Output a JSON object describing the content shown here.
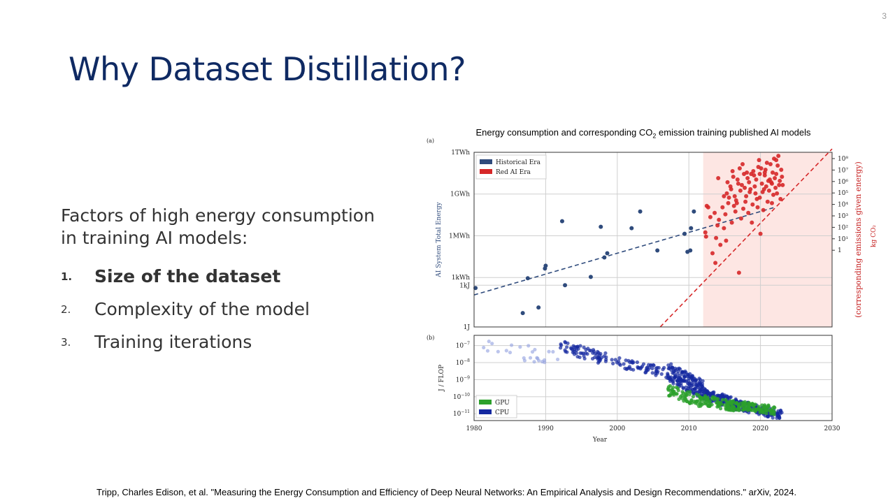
{
  "slide": {
    "page_number": "3",
    "title": "Why Dataset Distillation?",
    "intro": "Factors of high energy consumption in training AI models:",
    "factors": [
      {
        "number": "1.",
        "text": "Size of the dataset",
        "emphasized": true
      },
      {
        "number": "2.",
        "text": "Complexity of the model",
        "emphasized": false
      },
      {
        "number": "3.",
        "text": "Training iterations",
        "emphasized": false
      }
    ],
    "citation": "Tripp, Charles Edison, et al. \"Measuring the Energy Consumption and Efficiency of Deep Neural Networks: An Empirical Analysis and Design Recommendations.\" arXiv, 2024."
  },
  "figure": {
    "caption_prefix": "Energy consumption and corresponding CO",
    "caption_sub": "2",
    "caption_suffix": " emission training published AI models"
  },
  "chart_data": [
    {
      "type": "scatter",
      "panel_label": "(a)",
      "ylabel": "AI System Total Energy",
      "right_label": "(corresponding emissions given energy)",
      "right_unit": "kg CO₂",
      "xlim": [
        1980,
        2030
      ],
      "ylim_log10_joules": [
        0,
        12.556
      ],
      "y_ticks": [
        "1TWh",
        "1GWh",
        "1MWh",
        "1kWh",
        "1kJ",
        "1J"
      ],
      "right_ticks": [
        "10⁸",
        "10⁷",
        "10⁶",
        "10⁵",
        "10⁴",
        "10³",
        "10²",
        "10¹",
        "1"
      ],
      "red_ai_era_shaded_from": 2012,
      "grid": true,
      "legend_position": "top-left",
      "colors": {
        "historical": "#2f4b7c",
        "red_ai": "#d62728",
        "shade": "#fde6e3"
      },
      "series": [
        {
          "name": "Historical Era",
          "points": [
            [
              1980.2,
              2.8
            ],
            [
              1986.8,
              1.0
            ],
            [
              1987.5,
              3.5
            ],
            [
              1989,
              1.4
            ],
            [
              1989.9,
              4.2
            ],
            [
              1990,
              4.4
            ],
            [
              1992.3,
              7.6
            ],
            [
              1992.7,
              3.0
            ],
            [
              1996.3,
              3.6
            ],
            [
              1997.7,
              7.2
            ],
            [
              1998.2,
              5.0
            ],
            [
              1998.6,
              5.3
            ],
            [
              2002,
              7.1
            ],
            [
              2003.2,
              8.3
            ],
            [
              2005.6,
              5.5
            ],
            [
              2009.4,
              6.7
            ],
            [
              2009.8,
              5.4
            ],
            [
              2010.2,
              5.5
            ],
            [
              2010.3,
              7.1
            ],
            [
              2010.7,
              8.3
            ]
          ],
          "trend": {
            "from": [
              1980,
              2.3
            ],
            "to": [
              2022,
              8.6
            ]
          }
        },
        {
          "name": "Red AI Era",
          "points": [
            [
              2012.3,
              6.8
            ],
            [
              2012.5,
              8.7
            ],
            [
              2013.7,
              4.6
            ],
            [
              2015.2,
              6.2
            ],
            [
              2017,
              3.9
            ],
            [
              2012.7,
              8.6
            ],
            [
              2016.5,
              8.3
            ],
            [
              2012.4,
              6.5
            ],
            [
              2013.6,
              8.2
            ],
            [
              2014.1,
              10.7
            ],
            [
              2014.9,
              7.1
            ],
            [
              2015.6,
              9.3
            ],
            [
              2016.2,
              10.8
            ],
            [
              2017.5,
              11.7
            ],
            [
              2018.3,
              8.2
            ],
            [
              2019.2,
              10.1
            ],
            [
              2020.0,
              6.7
            ],
            [
              2020.7,
              11.3
            ],
            [
              2021.6,
              8.9
            ],
            [
              2022.2,
              11.0
            ],
            [
              2022.8,
              9.2
            ],
            [
              2023.1,
              10.2
            ],
            [
              2019.8,
              12.0
            ],
            [
              2021.1,
              10.5
            ],
            [
              2014.4,
              5.9
            ],
            [
              2016.9,
              10.3
            ],
            [
              2018.8,
              7.5
            ],
            [
              2020.5,
              9.9
            ],
            [
              2022.5,
              12.3
            ],
            [
              2015.3,
              9.6
            ],
            [
              2013.0,
              7.9
            ],
            [
              2017.9,
              9.0
            ],
            [
              2019.6,
              8.6
            ],
            [
              2021.4,
              11.7
            ],
            [
              2016.0,
              7.5
            ],
            [
              2018.1,
              11.1
            ],
            [
              2020.2,
              10.3
            ],
            [
              2022.0,
              10.7
            ],
            [
              2014.7,
              8.6
            ],
            [
              2019.0,
              11.2
            ],
            [
              2021.8,
              9.5
            ],
            [
              2017.3,
              7.8
            ],
            [
              2020.9,
              11.8
            ],
            [
              2015.8,
              10.1
            ],
            [
              2022.6,
              10.2
            ],
            [
              2018.6,
              9.9
            ],
            [
              2016.4,
              9.4
            ],
            [
              2021.2,
              9.8
            ],
            [
              2019.4,
              10.6
            ],
            [
              2017.1,
              11.4
            ],
            [
              2022.9,
              11.3
            ],
            [
              2013.3,
              5.3
            ],
            [
              2014.9,
              9.4
            ],
            [
              2018.4,
              10.4
            ],
            [
              2020.4,
              8.4
            ],
            [
              2016.7,
              8.9
            ],
            [
              2021.9,
              12.1
            ],
            [
              2019.9,
              9.3
            ],
            [
              2015.1,
              8.1
            ],
            [
              2017.8,
              10.0
            ],
            [
              2020.6,
              10.9
            ],
            [
              2022.3,
              9.6
            ],
            [
              2018.9,
              8.8
            ],
            [
              2016.1,
              11.2
            ],
            [
              2021.5,
              10.4
            ],
            [
              2014.0,
              7.3
            ],
            [
              2019.7,
              11.5
            ],
            [
              2023.0,
              10.8
            ],
            [
              2017.6,
              8.5
            ],
            [
              2020.1,
              11.4
            ],
            [
              2015.5,
              8.9
            ],
            [
              2018.2,
              10.7
            ],
            [
              2021.0,
              9.0
            ],
            [
              2022.4,
              11.6
            ],
            [
              2016.8,
              10.6
            ],
            [
              2019.3,
              9.6
            ],
            [
              2013.8,
              6.4
            ],
            [
              2020.8,
              10.1
            ],
            [
              2017.2,
              9.8
            ],
            [
              2021.7,
              11.1
            ],
            [
              2018.0,
              9.4
            ],
            [
              2022.7,
              10.5
            ],
            [
              2015.9,
              9.9
            ],
            [
              2019.1,
              10.9
            ],
            [
              2020.3,
              9.7
            ],
            [
              2014.2,
              7.7
            ],
            [
              2016.6,
              9.1
            ],
            [
              2021.3,
              10.6
            ],
            [
              2018.7,
              11.0
            ],
            [
              2017.4,
              10.2
            ],
            [
              2022.1,
              10.0
            ],
            [
              2019.5,
              9.2
            ],
            [
              2020.6,
              11.1
            ],
            [
              2015.4,
              10.4
            ],
            [
              2021.6,
              10.3
            ],
            [
              2016.3,
              8.7
            ],
            [
              2018.5,
              9.7
            ],
            [
              2022.2,
              12.0
            ],
            [
              2019.9,
              11.0
            ],
            [
              2017.7,
              11.0
            ]
          ],
          "trend": {
            "from": [
              2006,
              0.0
            ],
            "to": [
              2030,
              12.8
            ]
          }
        }
      ]
    },
    {
      "type": "scatter",
      "panel_label": "(b)",
      "xlabel": "Year",
      "ylabel": "J / FLOP",
      "xlim": [
        1980,
        2030
      ],
      "ylim_log10": [
        -11.4,
        -6.4
      ],
      "x_ticks": [
        "1980",
        "1990",
        "2000",
        "2010",
        "2020",
        "2030"
      ],
      "y_ticks": [
        {
          "label": "10",
          "exp": "−7"
        },
        {
          "label": "10",
          "exp": "−8"
        },
        {
          "label": "10",
          "exp": "−9"
        },
        {
          "label": "10",
          "exp": "−10"
        },
        {
          "label": "10",
          "exp": "−11"
        }
      ],
      "grid": true,
      "legend_position": "bottom-left",
      "colors": {
        "gpu": "#2ca02c",
        "cpu": "#1428a0"
      },
      "series": [
        {
          "name": "GPU",
          "segments": [
            {
              "x": [
                2007,
                2012
              ],
              "y": [
                -9.6,
                -10.3
              ],
              "spread": 0.35,
              "n": 70
            },
            {
              "x": [
                2012,
                2017
              ],
              "y": [
                -10.2,
                -10.6
              ],
              "spread": 0.3,
              "n": 90
            },
            {
              "x": [
                2017,
                2022
              ],
              "y": [
                -10.5,
                -10.8
              ],
              "spread": 0.25,
              "n": 90
            }
          ]
        },
        {
          "name": "CPU",
          "segments": [
            {
              "x": [
                1980,
                1992
              ],
              "y": [
                -7.0,
                -7.8
              ],
              "spread": 0.5,
              "n": 25,
              "light": true
            },
            {
              "x": [
                1992,
                2000
              ],
              "y": [
                -7.0,
                -8.0
              ],
              "spread": 0.35,
              "n": 70
            },
            {
              "x": [
                2000,
                2007
              ],
              "y": [
                -8.0,
                -8.6
              ],
              "spread": 0.3,
              "n": 55
            },
            {
              "x": [
                2007,
                2012
              ],
              "y": [
                -8.5,
                -9.6
              ],
              "spread": 0.55,
              "n": 160
            },
            {
              "x": [
                2012,
                2017
              ],
              "y": [
                -9.8,
                -10.5
              ],
              "spread": 0.35,
              "n": 130
            },
            {
              "x": [
                2017,
                2023
              ],
              "y": [
                -10.5,
                -11.1
              ],
              "spread": 0.3,
              "n": 110
            }
          ]
        }
      ]
    }
  ]
}
